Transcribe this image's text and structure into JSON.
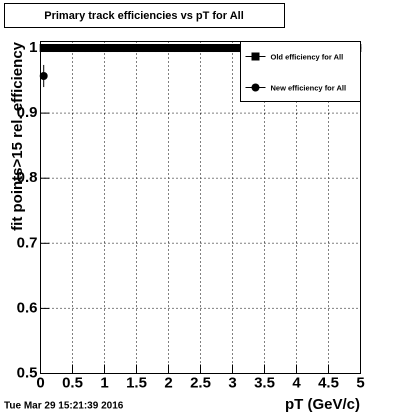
{
  "chart_data": {
    "type": "scatter",
    "title": "Primary track efficiencies vs pT for All",
    "x_label": "pT (GeV/c)",
    "y_label": "fit points>15 rel. efficiency",
    "timestamp": "Tue Mar 29 15:21:39 2016",
    "xlim": [
      0,
      5
    ],
    "ylim": [
      0.5,
      1.01
    ],
    "xticks": [
      0,
      0.5,
      1,
      1.5,
      2,
      2.5,
      3,
      3.5,
      4,
      4.5,
      5
    ],
    "yticks": [
      0.5,
      0.6,
      0.7,
      0.8,
      0.9,
      1
    ],
    "grid": true,
    "legend": "top-right",
    "series": [
      {
        "name": "Old efficiency  for All",
        "color": "#000000",
        "marker": "square",
        "x": [
          0.05,
          0.15,
          0.25,
          0.35,
          0.45,
          0.55,
          0.65,
          0.75,
          0.85,
          0.95,
          1.05,
          1.15,
          1.25,
          1.35,
          1.45,
          1.55,
          1.65,
          1.75,
          1.85,
          1.95,
          2.05,
          2.15,
          2.25,
          2.35,
          2.45,
          2.55,
          2.65,
          2.75,
          2.85,
          2.95,
          3.05,
          3.15,
          3.25,
          3.35,
          3.45,
          3.55,
          3.65,
          3.75,
          3.85,
          3.95,
          4.05,
          4.15,
          4.25,
          4.35,
          4.45,
          4.55,
          4.65,
          4.75,
          4.85,
          4.95
        ],
        "values": [
          1,
          1,
          1,
          1,
          1,
          1,
          1,
          1,
          1,
          1,
          1,
          1,
          1,
          1,
          1,
          1,
          1,
          1,
          1,
          1,
          1,
          1,
          1,
          1,
          1,
          1,
          1,
          1,
          1,
          1,
          1,
          1,
          1,
          1,
          1,
          1,
          1,
          1,
          1,
          1,
          1,
          1,
          1,
          1,
          1,
          1,
          1,
          1,
          1,
          1
        ]
      },
      {
        "name": "New efficiency  for All",
        "color": "#000000",
        "marker": "circle",
        "x": [
          0.05,
          0.15,
          0.25,
          0.35,
          0.45,
          0.55,
          0.65,
          0.75,
          0.85,
          0.95,
          1.05,
          1.15,
          1.25,
          1.35,
          1.45,
          1.55,
          1.65,
          1.75,
          1.85,
          1.95,
          2.05,
          2.15,
          2.25,
          2.35,
          2.45,
          2.55,
          2.65,
          2.75,
          2.85,
          2.95,
          3.05,
          3.15,
          3.25,
          3.35,
          3.45,
          3.55,
          3.65,
          3.75,
          3.85,
          3.95,
          4.05,
          4.15,
          4.25,
          4.35,
          4.45,
          4.55,
          4.65,
          4.75,
          4.85,
          4.95
        ],
        "values": [
          0.957,
          1,
          1,
          1,
          1,
          1,
          1,
          1,
          1,
          1,
          1,
          1,
          1,
          1,
          1,
          1,
          1,
          1,
          1,
          1,
          1,
          1,
          1,
          1,
          1,
          1,
          1,
          1,
          1,
          1,
          1,
          1,
          1,
          1,
          1,
          1,
          1,
          1,
          1,
          1,
          1,
          1,
          1,
          1,
          1,
          1,
          1,
          1,
          1,
          1
        ],
        "errors": [
          0.017,
          0,
          0,
          0,
          0,
          0,
          0,
          0,
          0,
          0,
          0,
          0,
          0,
          0,
          0,
          0,
          0,
          0,
          0,
          0,
          0,
          0,
          0,
          0,
          0,
          0,
          0,
          0,
          0,
          0,
          0,
          0,
          0,
          0,
          0,
          0,
          0,
          0,
          0,
          0,
          0,
          0,
          0,
          0,
          0,
          0,
          0,
          0,
          0,
          0
        ]
      }
    ]
  }
}
